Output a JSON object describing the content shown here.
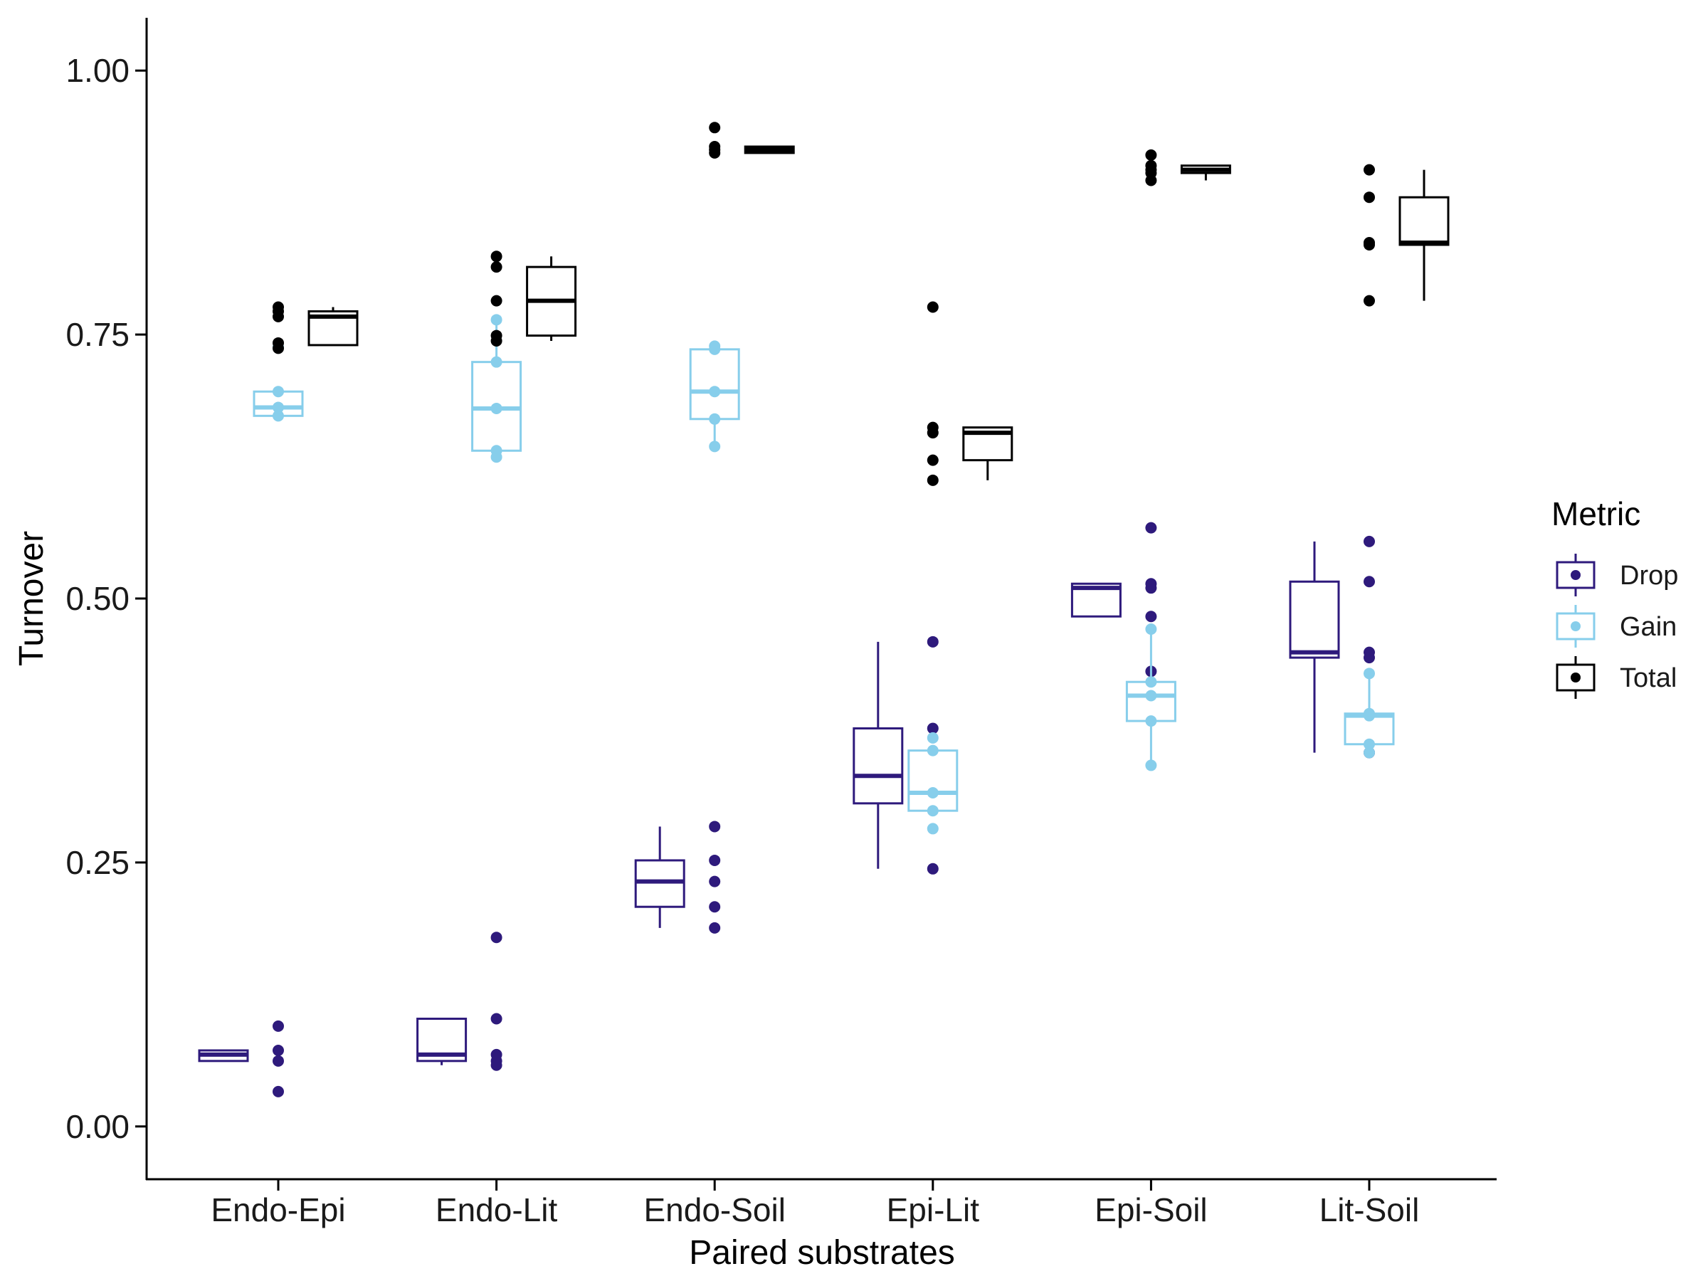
{
  "chart_data": {
    "type": "boxplot",
    "xlabel": "Paired substrates",
    "ylabel": "Turnover",
    "ylim": [
      -0.05,
      1.05
    ],
    "yticks": [
      0.0,
      0.25,
      0.5,
      0.75,
      1.0
    ],
    "ytick_labels": [
      "0.00",
      "0.25",
      "0.50",
      "0.75",
      "1.00"
    ],
    "categories": [
      "Endo-Epi",
      "Endo-Lit",
      "Endo-Soil",
      "Epi-Lit",
      "Epi-Soil",
      "Lit-Soil"
    ],
    "grid": false,
    "legend": {
      "title": "Metric",
      "position": "right",
      "entries": [
        "Drop",
        "Gain",
        "Total"
      ]
    },
    "series": [
      {
        "name": "Drop",
        "color": "#2e1a7c",
        "boxes": [
          {
            "category": "Endo-Epi",
            "whisker_low": 0.062,
            "q1": 0.062,
            "median": 0.068,
            "q3": 0.072,
            "whisker_high": 0.072,
            "outliers": [
              0.095,
              0.072,
              0.062,
              0.033
            ]
          },
          {
            "category": "Endo-Lit",
            "whisker_low": 0.058,
            "q1": 0.062,
            "median": 0.068,
            "q3": 0.102,
            "whisker_high": 0.102,
            "outliers": [
              0.179,
              0.102,
              0.068,
              0.062,
              0.058
            ]
          },
          {
            "category": "Endo-Soil",
            "whisker_low": 0.188,
            "q1": 0.208,
            "median": 0.232,
            "q3": 0.252,
            "whisker_high": 0.284,
            "outliers": [
              0.284,
              0.252,
              0.232,
              0.208,
              0.188
            ]
          },
          {
            "category": "Epi-Lit",
            "whisker_low": 0.244,
            "q1": 0.306,
            "median": 0.332,
            "q3": 0.377,
            "whisker_high": 0.459,
            "outliers": [
              0.459,
              0.377,
              0.332,
              0.306,
              0.244
            ]
          },
          {
            "category": "Epi-Soil",
            "whisker_low": 0.483,
            "q1": 0.483,
            "median": 0.51,
            "q3": 0.514,
            "whisker_high": 0.514,
            "outliers": [
              0.567,
              0.514,
              0.51,
              0.483,
              0.431
            ]
          },
          {
            "category": "Lit-Soil",
            "whisker_low": 0.354,
            "q1": 0.444,
            "median": 0.449,
            "q3": 0.516,
            "whisker_high": 0.554,
            "outliers": [
              0.554,
              0.516,
              0.449,
              0.444,
              0.354
            ]
          }
        ]
      },
      {
        "name": "Gain",
        "color": "#87ceeb",
        "boxes": [
          {
            "category": "Endo-Epi",
            "whisker_low": 0.673,
            "q1": 0.673,
            "median": 0.681,
            "q3": 0.696,
            "whisker_high": 0.696,
            "outliers": [
              0.738,
              0.696,
              0.681,
              0.673
            ]
          },
          {
            "category": "Endo-Lit",
            "whisker_low": 0.634,
            "q1": 0.64,
            "median": 0.68,
            "q3": 0.724,
            "whisker_high": 0.764,
            "outliers": [
              0.764,
              0.724,
              0.68,
              0.64,
              0.634
            ]
          },
          {
            "category": "Endo-Soil",
            "whisker_low": 0.644,
            "q1": 0.67,
            "median": 0.696,
            "q3": 0.736,
            "whisker_high": 0.739,
            "outliers": [
              0.739,
              0.736,
              0.696,
              0.67,
              0.644
            ]
          },
          {
            "category": "Epi-Lit",
            "whisker_low": 0.299,
            "q1": 0.299,
            "median": 0.316,
            "q3": 0.356,
            "whisker_high": 0.356,
            "outliers": [
              0.368,
              0.356,
              0.316,
              0.299,
              0.282
            ]
          },
          {
            "category": "Epi-Soil",
            "whisker_low": 0.342,
            "q1": 0.384,
            "median": 0.408,
            "q3": 0.421,
            "whisker_high": 0.471,
            "outliers": [
              0.471,
              0.421,
              0.408,
              0.384,
              0.342
            ]
          },
          {
            "category": "Lit-Soil",
            "whisker_low": 0.362,
            "q1": 0.362,
            "median": 0.389,
            "q3": 0.391,
            "whisker_high": 0.429,
            "outliers": [
              0.429,
              0.391,
              0.389,
              0.362,
              0.354
            ]
          }
        ]
      },
      {
        "name": "Total",
        "color": "#000000",
        "boxes": [
          {
            "category": "Endo-Epi",
            "whisker_low": 0.74,
            "q1": 0.74,
            "median": 0.767,
            "q3": 0.772,
            "whisker_high": 0.776,
            "outliers": [
              0.776,
              0.772,
              0.767,
              0.742,
              0.737
            ]
          },
          {
            "category": "Endo-Lit",
            "whisker_low": 0.744,
            "q1": 0.749,
            "median": 0.782,
            "q3": 0.814,
            "whisker_high": 0.824,
            "outliers": [
              0.824,
              0.814,
              0.782,
              0.749,
              0.744
            ]
          },
          {
            "category": "Endo-Soil",
            "whisker_low": 0.922,
            "q1": 0.922,
            "median": 0.925,
            "q3": 0.928,
            "whisker_high": 0.928,
            "outliers": [
              0.946,
              0.928,
              0.925,
              0.922
            ]
          },
          {
            "category": "Epi-Lit",
            "whisker_low": 0.612,
            "q1": 0.631,
            "median": 0.657,
            "q3": 0.662,
            "whisker_high": 0.662,
            "outliers": [
              0.776,
              0.662,
              0.657,
              0.631,
              0.612
            ]
          },
          {
            "category": "Epi-Soil",
            "whisker_low": 0.896,
            "q1": 0.903,
            "median": 0.906,
            "q3": 0.91,
            "whisker_high": 0.91,
            "outliers": [
              0.92,
              0.91,
              0.906,
              0.903,
              0.896
            ]
          },
          {
            "category": "Lit-Soil",
            "whisker_low": 0.782,
            "q1": 0.835,
            "median": 0.837,
            "q3": 0.88,
            "whisker_high": 0.906,
            "outliers": [
              0.906,
              0.88,
              0.837,
              0.835,
              0.782
            ]
          }
        ]
      }
    ]
  }
}
